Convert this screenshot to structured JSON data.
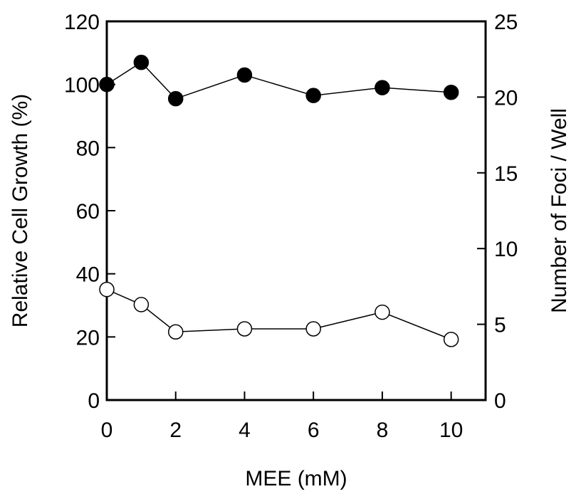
{
  "chart_data": {
    "type": "scatter",
    "title": "",
    "xlabel": "MEE (mM)",
    "ylabel_left": "Relative Cell Growth (%)",
    "ylabel_right": "Number of Foci / Well",
    "xlim": [
      0,
      11
    ],
    "ylim_left": [
      0,
      120
    ],
    "ylim_right": [
      0,
      25
    ],
    "x_ticks": [
      0,
      2,
      4,
      6,
      8,
      10
    ],
    "y_ticks_left": [
      0,
      20,
      40,
      60,
      80,
      100,
      120
    ],
    "y_ticks_right": [
      0,
      5,
      10,
      15,
      20,
      25
    ],
    "grid": false,
    "series": [
      {
        "axis": "left",
        "marker": "filled-circle",
        "color": "#000000",
        "x": [
          0,
          1,
          2,
          4,
          6,
          8,
          10
        ],
        "y": [
          100,
          107,
          95.5,
          103,
          96.5,
          99,
          97.5
        ]
      },
      {
        "axis": "right",
        "marker": "open-circle",
        "color": "#000000",
        "x": [
          0,
          1,
          2,
          4,
          6,
          8,
          10
        ],
        "y": [
          7.3,
          6.3,
          4.5,
          4.7,
          4.7,
          5.8,
          4.0
        ]
      }
    ]
  }
}
